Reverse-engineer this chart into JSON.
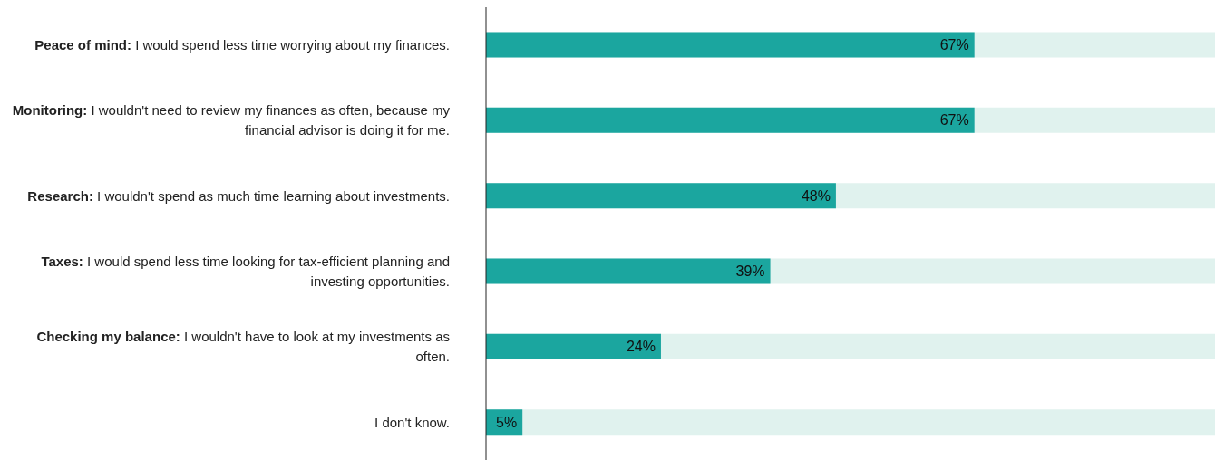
{
  "chart_data": {
    "type": "bar",
    "orientation": "horizontal",
    "categories": [
      "Peace of mind: I would spend less time worrying about my finances.",
      "Monitoring: I wouldn't need to review my finances as often, because my financial advisor is doing it for me.",
      "Research: I wouldn't spend as much time learning about investments.",
      "Taxes: I would spend less time looking for tax-efficient planning and investing opportunities.",
      "Checking my balance: I wouldn't have to look at my investments as often.",
      "I don't know."
    ],
    "values": [
      67,
      67,
      48,
      39,
      24,
      5
    ],
    "value_labels": [
      "67%",
      "67%",
      "48%",
      "39%",
      "24%",
      "5%"
    ],
    "color": "#1ba69f",
    "xlim": [
      0,
      100
    ],
    "tick_labels": "y",
    "grid": false,
    "legend": false
  }
}
